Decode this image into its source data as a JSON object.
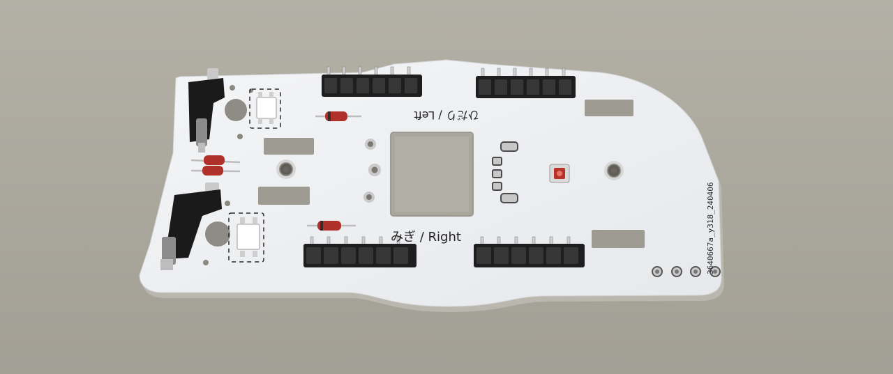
{
  "photo": {
    "subject": "Unpopulated white PCB with pin headers, switches, diodes and LED",
    "colors": {
      "table": "#aaa79d",
      "pcb": "#eef0f2",
      "pcb_edge": "#b9b7ae",
      "header_plastic": "#1e1e1e",
      "pin_metal": "#c9c9c9",
      "diode_body": "#b0302a",
      "led": "#b8322a"
    }
  },
  "pcb": {
    "label_left": "ひだり / Left",
    "label_right": "みぎ / Right",
    "board_id": "3640667a_y318_240406"
  }
}
